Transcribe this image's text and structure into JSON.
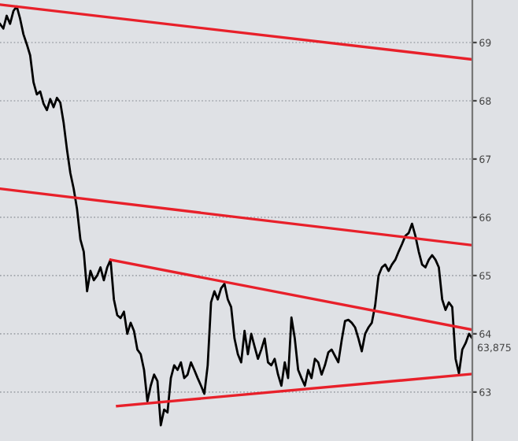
{
  "chart_data": {
    "type": "line",
    "ylim": [
      62.16,
      69.73
    ],
    "categories": [
      null,
      null,
      null,
      null,
      null,
      null,
      null,
      null,
      null,
      null,
      null,
      null,
      null,
      null,
      null,
      null,
      null,
      null,
      null,
      null,
      null,
      null,
      null,
      null,
      null,
      null,
      null,
      null,
      null,
      null,
      null,
      null,
      null,
      null,
      null,
      null,
      null,
      null,
      null,
      null,
      null,
      null,
      null,
      null,
      null,
      null,
      null,
      null,
      null,
      null,
      null,
      null,
      null,
      null,
      null,
      null,
      null,
      null,
      null,
      null,
      null,
      null,
      null,
      null,
      null,
      null,
      null,
      null,
      null,
      null,
      null,
      null,
      null,
      null,
      null,
      null,
      null,
      null,
      null,
      null,
      null,
      null,
      null,
      null,
      null,
      null,
      null,
      null,
      null,
      null,
      null,
      null,
      null,
      null,
      null,
      null,
      null,
      null,
      null,
      null,
      null,
      null,
      null,
      null,
      null,
      null,
      null,
      null,
      null,
      null,
      null,
      null,
      null,
      null,
      null,
      null,
      null,
      null,
      null,
      null,
      null,
      null,
      null,
      null,
      null,
      null,
      null,
      null,
      null,
      null,
      null,
      null,
      null,
      null,
      null,
      null,
      null,
      null,
      null,
      null,
      null,
      null
    ],
    "yticks": [
      63,
      64,
      65,
      66,
      67,
      68,
      69
    ],
    "annotations": [
      "63,875"
    ],
    "tick_labels": "y",
    "grid": "y",
    "marker": "none",
    "line_style": "solid",
    "series": [
      {
        "color": "#000000",
        "values": [
          69.32,
          69.24,
          69.46,
          69.32,
          69.54,
          69.62,
          69.41,
          69.14,
          68.97,
          68.78,
          68.32,
          68.11,
          68.16,
          67.95,
          67.84,
          68.03,
          67.89,
          68.05,
          67.97,
          67.62,
          67.16,
          66.76,
          66.49,
          66.14,
          65.62,
          65.41,
          64.73,
          65.08,
          64.92,
          65.0,
          65.14,
          64.92,
          65.14,
          65.27,
          64.59,
          64.32,
          64.27,
          64.38,
          64.0,
          64.19,
          64.05,
          63.73,
          63.65,
          63.38,
          62.84,
          63.11,
          63.3,
          63.19,
          62.43,
          62.7,
          62.65,
          63.24,
          63.46,
          63.38,
          63.51,
          63.24,
          63.3,
          63.51,
          63.38,
          63.24,
          63.11,
          62.97,
          63.46,
          64.54,
          64.73,
          64.59,
          64.78,
          64.86,
          64.59,
          64.46,
          63.92,
          63.65,
          63.51,
          64.05,
          63.65,
          64.0,
          63.78,
          63.57,
          63.73,
          63.92,
          63.51,
          63.46,
          63.57,
          63.3,
          63.11,
          63.51,
          63.24,
          64.28,
          63.92,
          63.38,
          63.24,
          63.11,
          63.38,
          63.24,
          63.57,
          63.51,
          63.3,
          63.46,
          63.68,
          63.73,
          63.62,
          63.51,
          63.89,
          64.22,
          64.24,
          64.19,
          64.11,
          63.92,
          63.7,
          64.0,
          64.11,
          64.19,
          64.49,
          65.0,
          65.14,
          65.19,
          65.08,
          65.19,
          65.27,
          65.41,
          65.54,
          65.68,
          65.73,
          65.89,
          65.68,
          65.41,
          65.19,
          65.14,
          65.27,
          65.35,
          65.27,
          65.14,
          64.59,
          64.41,
          64.54,
          64.46,
          63.57,
          63.32,
          63.73,
          63.84,
          64.0,
          63.92
        ]
      },
      {
        "color": "#e8202a",
        "values": [
          69.65,
          null,
          null,
          null,
          null,
          null,
          null,
          null,
          null,
          null,
          null,
          null,
          null,
          null,
          null,
          null,
          null,
          null,
          null,
          null,
          null,
          null,
          null,
          null,
          null,
          null,
          null,
          null,
          null,
          null,
          null,
          null,
          null,
          null,
          null,
          null,
          null,
          null,
          null,
          null,
          null,
          null,
          null,
          null,
          null,
          null,
          null,
          null,
          null,
          null,
          null,
          null,
          null,
          null,
          null,
          null,
          null,
          null,
          null,
          null,
          null,
          null,
          null,
          null,
          null,
          null,
          null,
          null,
          null,
          null,
          null,
          null,
          null,
          null,
          null,
          null,
          null,
          null,
          null,
          null,
          null,
          null,
          null,
          null,
          null,
          null,
          null,
          null,
          null,
          null,
          null,
          null,
          null,
          null,
          null,
          null,
          null,
          null,
          null,
          null,
          null,
          null,
          null,
          null,
          null,
          null,
          null,
          null,
          null,
          null,
          null,
          null,
          null,
          null,
          null,
          null,
          null,
          null,
          null,
          null,
          null,
          null,
          null,
          null,
          null,
          null,
          null,
          null,
          null,
          null,
          null,
          null,
          null,
          null,
          null,
          null,
          null,
          null,
          null,
          null,
          null,
          68.71
        ]
      },
      {
        "color": "#e8202a",
        "values": [
          66.49,
          null,
          null,
          null,
          null,
          null,
          null,
          null,
          null,
          null,
          null,
          null,
          null,
          null,
          null,
          null,
          null,
          null,
          null,
          null,
          null,
          null,
          null,
          null,
          null,
          null,
          null,
          null,
          null,
          null,
          null,
          null,
          null,
          null,
          null,
          null,
          null,
          null,
          null,
          null,
          null,
          null,
          null,
          null,
          null,
          null,
          null,
          null,
          null,
          null,
          null,
          null,
          null,
          null,
          null,
          null,
          null,
          null,
          null,
          null,
          null,
          null,
          null,
          null,
          null,
          null,
          null,
          null,
          null,
          null,
          null,
          null,
          null,
          null,
          null,
          null,
          null,
          null,
          null,
          null,
          null,
          null,
          null,
          null,
          null,
          null,
          null,
          null,
          null,
          null,
          null,
          null,
          null,
          null,
          null,
          null,
          null,
          null,
          null,
          null,
          null,
          null,
          null,
          null,
          null,
          null,
          null,
          null,
          null,
          null,
          null,
          null,
          null,
          null,
          null,
          null,
          null,
          null,
          null,
          null,
          null,
          null,
          null,
          null,
          null,
          null,
          null,
          null,
          null,
          null,
          null,
          null,
          null,
          null,
          null,
          null,
          null,
          null,
          null,
          null,
          null,
          65.52
        ]
      },
      {
        "color": "#e8202a",
        "values": [
          null,
          null,
          null,
          null,
          null,
          null,
          null,
          null,
          null,
          null,
          null,
          null,
          null,
          null,
          null,
          null,
          null,
          null,
          null,
          null,
          null,
          null,
          null,
          null,
          null,
          null,
          null,
          null,
          null,
          null,
          null,
          null,
          null,
          65.27,
          null,
          null,
          null,
          null,
          null,
          null,
          null,
          null,
          null,
          null,
          null,
          null,
          null,
          null,
          null,
          null,
          null,
          null,
          null,
          null,
          null,
          null,
          null,
          null,
          null,
          null,
          null,
          null,
          null,
          null,
          null,
          null,
          null,
          null,
          null,
          null,
          null,
          null,
          null,
          null,
          null,
          null,
          null,
          null,
          null,
          null,
          null,
          null,
          null,
          null,
          null,
          null,
          null,
          null,
          null,
          null,
          null,
          null,
          null,
          null,
          null,
          null,
          null,
          null,
          null,
          null,
          null,
          null,
          null,
          null,
          null,
          null,
          null,
          null,
          null,
          null,
          null,
          null,
          null,
          null,
          null,
          null,
          null,
          null,
          null,
          null,
          null,
          null,
          null,
          null,
          null,
          null,
          null,
          null,
          null,
          null,
          null,
          null,
          null,
          null,
          null,
          null,
          null,
          null,
          null,
          null,
          null,
          64.07
        ]
      },
      {
        "color": "#e8202a",
        "values": [
          null,
          null,
          null,
          null,
          null,
          null,
          null,
          null,
          null,
          null,
          null,
          null,
          null,
          null,
          null,
          null,
          null,
          null,
          null,
          null,
          null,
          null,
          null,
          null,
          null,
          null,
          null,
          null,
          null,
          null,
          null,
          null,
          null,
          null,
          null,
          62.76,
          null,
          null,
          null,
          null,
          null,
          null,
          null,
          null,
          null,
          null,
          null,
          null,
          null,
          null,
          null,
          null,
          null,
          null,
          null,
          null,
          null,
          null,
          null,
          null,
          null,
          null,
          null,
          null,
          null,
          null,
          null,
          null,
          null,
          null,
          null,
          null,
          null,
          null,
          null,
          null,
          null,
          null,
          null,
          null,
          null,
          null,
          null,
          null,
          null,
          null,
          null,
          null,
          null,
          null,
          null,
          null,
          null,
          null,
          null,
          null,
          null,
          null,
          null,
          null,
          null,
          null,
          null,
          null,
          null,
          null,
          null,
          null,
          null,
          null,
          null,
          null,
          null,
          null,
          null,
          null,
          null,
          null,
          null,
          null,
          null,
          null,
          null,
          null,
          null,
          null,
          null,
          null,
          null,
          null,
          null,
          null,
          null,
          null,
          null,
          null,
          null,
          null,
          null,
          null,
          null,
          63.31
        ]
      }
    ]
  }
}
